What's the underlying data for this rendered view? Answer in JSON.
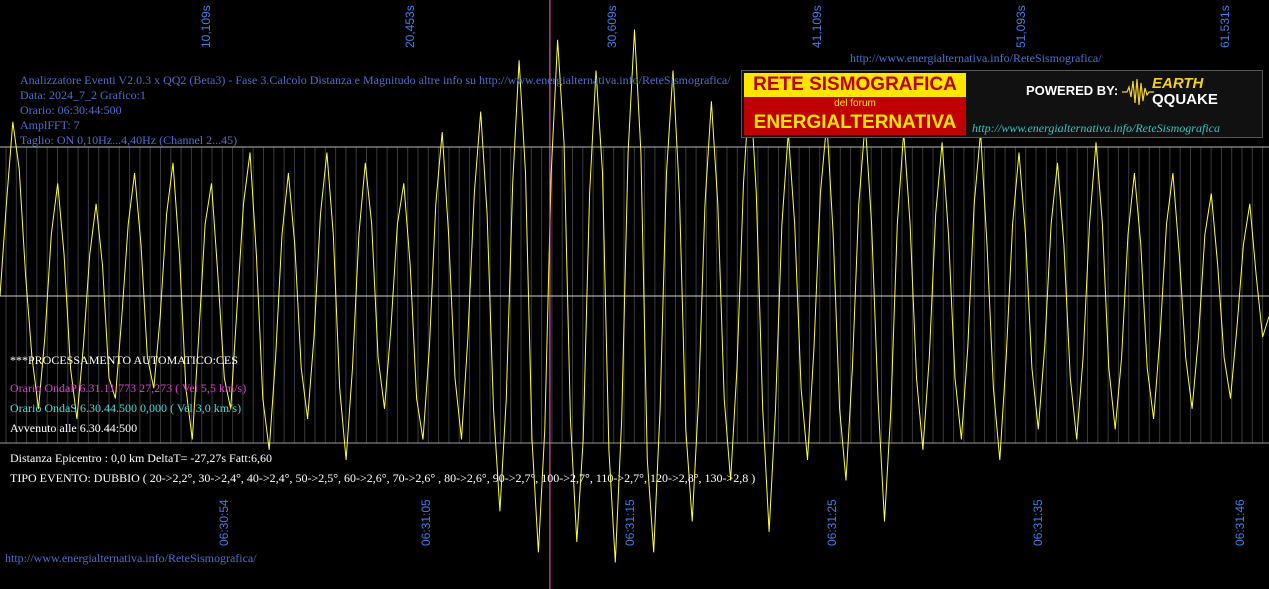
{
  "header": {
    "title_line": "Analizzatore Eventi V2.0.3 x QQ2 (Beta3) - Fase 3.Calcolo Distanza e Magnitudo altre info su http://www.energialternativa.info/ReteSismografica/",
    "data_line": "Data: 2024_7_2 Grafico:1",
    "orario_line": "Orario: 06:30:44:500",
    "ampl_line": "AmplFFT: 7",
    "taglio_line": "Taglio: ON 0,10Hz...4,40Hz      (Channel 2...45)",
    "top_url": "http://www.energialternativa.info/ReteSismografica/"
  },
  "processing": {
    "heading": "***PROCESSAMENTO AUTOMATICO:CES",
    "onda_p": "Orario OndaP 6.31.11.773  27,273 ( Vel 5,5 km/s)",
    "onda_s": "Orario OndaS 6.30.44.500  0,000 ( Vel 3,0 km/s)",
    "avvenuto": "Avvenuto alle 6.30.44:500",
    "distanza": "Distanza Epicentro : 0,0 km DeltaT= -27,27s  Fatt:6,60",
    "tipo_evento": "TIPO EVENTO: DUBBIO ( 20->2,2°, 30->2,4°, 40->2,4°, 50->2,5°, 60->2,6°, 70->2,6° , 80->2,6°, 90->2,7°, 100->2,7°, 110->2,7°, 120->2,8°, 130->2,8 )"
  },
  "footer_url": "http://www.energialternativa.info/ReteSismografica/",
  "logo": {
    "line1": "RETE SISMOGRAFICA",
    "line2": "del forum",
    "line3": "ENERGIALTERNATIVA",
    "powered": "POWERED BY:",
    "earth": "EARTH",
    "quake": "QQUAKE",
    "url": "http://www.energialternativa.info/ReteSismografica"
  },
  "colors": {
    "background": "#000000",
    "signal": "#ffff33",
    "marker": "#ff66cc",
    "grid_lines": "#b8b8b8",
    "axis_labels": "#3f7fe6"
  },
  "chart_data": {
    "type": "line",
    "title": "",
    "xlabel": "",
    "ylabel": "",
    "top_ticks": [
      "10,109s",
      "20,453s",
      "30,609s",
      "41,109s",
      "51,093s",
      "61,531s"
    ],
    "bottom_ticks": [
      "06:30:54",
      "06:31:05",
      "06:31:15",
      "06:31:25",
      "06:31:35",
      "06:31:46"
    ],
    "time_range_s": [
      0,
      63
    ],
    "marker_time_s": 27.3,
    "series": [
      {
        "values": [
          0.0,
          0.45,
          0.85,
          0.62,
          0.1,
          -0.3,
          -0.55,
          -0.2,
          0.3,
          0.55,
          0.2,
          -0.35,
          -0.6,
          -0.25,
          0.2,
          0.45,
          0.15,
          -0.4,
          -0.5,
          -0.1,
          0.35,
          0.6,
          0.25,
          -0.3,
          -0.45,
          -0.1,
          0.4,
          0.65,
          0.2,
          -0.45,
          -0.7,
          -0.2,
          0.35,
          0.55,
          0.1,
          -0.4,
          -0.55,
          -0.05,
          0.45,
          0.7,
          0.2,
          -0.5,
          -0.75,
          -0.3,
          0.3,
          0.6,
          0.25,
          -0.35,
          -0.6,
          -0.2,
          0.4,
          0.7,
          0.3,
          -0.45,
          -0.8,
          -0.35,
          0.3,
          0.65,
          0.35,
          -0.3,
          -0.55,
          -0.15,
          0.35,
          0.55,
          0.15,
          -0.5,
          -0.7,
          -0.25,
          0.45,
          0.8,
          0.3,
          -0.4,
          -0.7,
          -0.2,
          0.5,
          0.9,
          0.4,
          -0.55,
          -1.05,
          -0.5,
          0.55,
          1.15,
          0.6,
          -0.7,
          -1.25,
          -0.65,
          0.6,
          1.25,
          0.75,
          -0.6,
          -1.2,
          -0.7,
          0.5,
          1.1,
          0.6,
          -0.75,
          -1.3,
          -0.6,
          0.7,
          1.3,
          0.7,
          -0.8,
          -1.25,
          -0.55,
          0.6,
          1.1,
          0.5,
          -0.65,
          -1.1,
          -0.5,
          0.45,
          0.95,
          0.45,
          -0.5,
          -0.9,
          -0.35,
          0.55,
          1.05,
          0.5,
          -0.55,
          -1.15,
          -0.55,
          0.35,
          0.8,
          0.35,
          -0.45,
          -0.8,
          -0.25,
          0.5,
          0.85,
          0.3,
          -0.55,
          -0.9,
          -0.35,
          0.45,
          0.85,
          0.35,
          -0.5,
          -1.1,
          -0.55,
          0.35,
          0.8,
          0.35,
          -0.4,
          -0.75,
          -0.3,
          0.4,
          0.75,
          0.3,
          -0.4,
          -0.7,
          -0.25,
          0.45,
          0.8,
          0.25,
          -0.45,
          -0.8,
          -0.3,
          0.35,
          0.7,
          0.3,
          -0.35,
          -0.65,
          -0.25,
          0.35,
          0.65,
          0.25,
          -0.4,
          -0.7,
          -0.3,
          0.35,
          0.75,
          0.35,
          -0.35,
          -0.65,
          -0.3,
          0.3,
          0.6,
          0.25,
          -0.35,
          -0.6,
          -0.2,
          0.35,
          0.6,
          0.2,
          -0.3,
          -0.55,
          -0.2,
          0.3,
          0.5,
          0.15,
          -0.3,
          -0.5,
          -0.15,
          0.25,
          0.45,
          0.1,
          -0.2,
          -0.1
        ]
      }
    ]
  }
}
